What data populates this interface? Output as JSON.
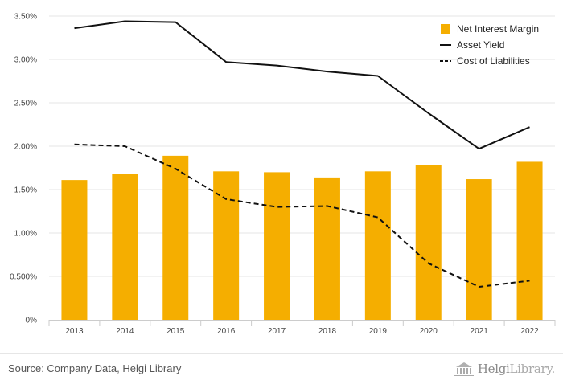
{
  "chart_data": {
    "type": "bar",
    "categories": [
      "2013",
      "2014",
      "2015",
      "2016",
      "2017",
      "2018",
      "2019",
      "2020",
      "2021",
      "2022"
    ],
    "series": [
      {
        "name": "Net Interest Margin",
        "type": "bar",
        "color": "#f5ae00",
        "values": [
          1.61,
          1.68,
          1.89,
          1.71,
          1.7,
          1.64,
          1.71,
          1.78,
          1.62,
          1.82
        ]
      },
      {
        "name": "Asset Yield",
        "type": "line",
        "style": "solid",
        "color": "#111111",
        "values": [
          3.36,
          3.44,
          3.43,
          2.97,
          2.93,
          2.86,
          2.81,
          2.38,
          1.97,
          2.22
        ]
      },
      {
        "name": "Cost of Liabilities",
        "type": "line",
        "style": "dashed",
        "color": "#111111",
        "values": [
          2.02,
          2.0,
          1.74,
          1.39,
          1.3,
          1.31,
          1.18,
          0.65,
          0.38,
          0.45
        ]
      }
    ],
    "y_ticks": [
      "0%",
      "0.500%",
      "1.00%",
      "1.50%",
      "2.00%",
      "2.50%",
      "3.00%",
      "3.50%"
    ],
    "ylim": [
      0,
      3.5
    ],
    "grid": true,
    "legend_position": "top-right"
  },
  "footer": {
    "source": "Source: Company Data, Helgi Library",
    "brand_part1": "Helgi",
    "brand_part2": "Library."
  },
  "colors": {
    "bar": "#f5ae00",
    "line": "#111111",
    "grid": "#e6e6e6"
  }
}
